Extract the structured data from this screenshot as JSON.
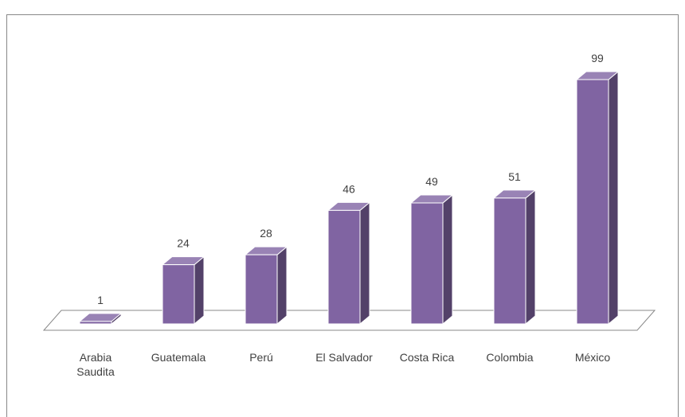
{
  "chart_data": {
    "type": "bar3d",
    "categories": [
      "Arabia Saudita",
      "Guatemala",
      "Perú",
      "El Salvador",
      "Costa Rica",
      "Colombia",
      "México"
    ],
    "values": [
      1,
      24,
      28,
      46,
      49,
      51,
      99
    ],
    "color": "#8064a2"
  }
}
